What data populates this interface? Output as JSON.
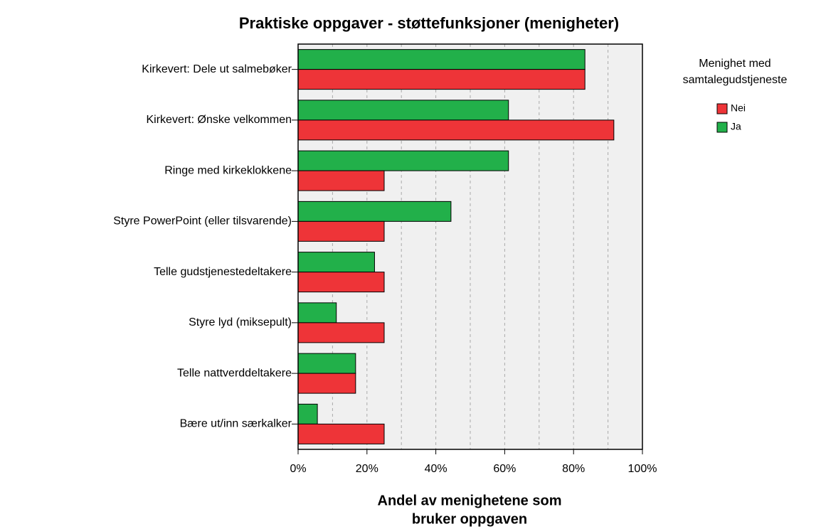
{
  "chart_data": {
    "type": "bar",
    "orientation": "horizontal",
    "title": "Praktiske oppgaver - støttefunksjoner (menigheter)",
    "xlabel": [
      "Andel av menighetene som",
      "bruker oppgaven"
    ],
    "legend_title": [
      "Menighet med",
      "samtalegudstjeneste"
    ],
    "categories": [
      "Kirkevert: Dele ut salmebøker",
      "Kirkevert: Ønske velkommen",
      "Ringe med kirkeklokkene",
      "Styre PowerPoint (eller tilsvarende)",
      "Telle gudstjenestedeltakere",
      "Styre lyd (miksepult)",
      "Telle nattverddeltakere",
      "Bære ut/inn særkalker"
    ],
    "series": [
      {
        "name": "Nei",
        "color": "#ee3438",
        "values": [
          83.3,
          91.7,
          25,
          25,
          25,
          25,
          16.7,
          25
        ]
      },
      {
        "name": "Ja",
        "color": "#22b04a",
        "values": [
          83.3,
          61.1,
          61.1,
          44.4,
          22.2,
          11.1,
          16.7,
          5.6
        ]
      }
    ],
    "xlim": [
      0,
      100
    ],
    "xticks": [
      {
        "value": 0,
        "label": "0%"
      },
      {
        "value": 20,
        "label": "20%"
      },
      {
        "value": 40,
        "label": "40%"
      },
      {
        "value": 60,
        "label": "60%"
      },
      {
        "value": 80,
        "label": "80%"
      },
      {
        "value": 100,
        "label": "100%"
      }
    ],
    "xgrid": [
      10,
      20,
      30,
      40,
      50,
      60,
      70,
      80,
      90
    ],
    "grid": true,
    "legend": "right"
  }
}
